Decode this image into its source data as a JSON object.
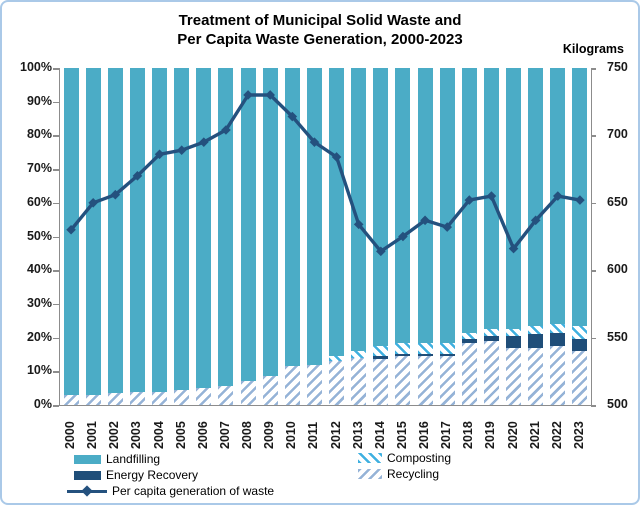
{
  "title_line1": "Treatment of Municipal Solid Waste and",
  "title_line2": "Per Capita Waste Generation, 2000-2023",
  "right_axis_title": "Kilograms",
  "legend": {
    "landfilling": "Landfilling",
    "composting": "Composting",
    "energy_recovery": "Energy Recovery",
    "recycling": "Recycling",
    "per_capita_line": "Per capita generation of waste"
  },
  "colors": {
    "landfilling": "#4BACC6",
    "energy_recovery": "#1F4E79",
    "composting_stripe": "#3FB0E0",
    "recycling_stripe": "#95B3D7",
    "line": "#24517E",
    "axis": "#8c8c8c",
    "frame_border": "#AAC9E8",
    "background": "#FFFFFF"
  },
  "chart_data": {
    "type": [
      "stacked-bar",
      "line"
    ],
    "title": "Treatment of Municipal Solid Waste and Per Capita Waste Generation, 2000-2023",
    "categories": [
      "2000",
      "2001",
      "2002",
      "2003",
      "2004",
      "2005",
      "2006",
      "2007",
      "2008",
      "2009",
      "2010",
      "2011",
      "2012",
      "2013",
      "2014",
      "2015",
      "2016",
      "2017",
      "2018",
      "2019",
      "2020",
      "2021",
      "2022",
      "2023"
    ],
    "left_axis": {
      "ticks": [
        "0%",
        "10%",
        "20%",
        "30%",
        "40%",
        "50%",
        "60%",
        "70%",
        "80%",
        "90%",
        "100%"
      ],
      "range": [
        0,
        100
      ],
      "unit": "%"
    },
    "right_axis": {
      "ticks": [
        "500",
        "550",
        "600",
        "650",
        "700",
        "750"
      ],
      "range": [
        500,
        750
      ],
      "label": "Kilograms",
      "unit": "kg"
    },
    "grid": false,
    "legend_position": "bottom",
    "series": [
      {
        "name": "Landfilling",
        "type": "bar",
        "unit": "%",
        "style": "solid-teal",
        "values": [
          97,
          97,
          96.5,
          96,
          96,
          95.5,
          95,
          94.5,
          93,
          91.5,
          88.5,
          88,
          85.5,
          84,
          82.5,
          81.5,
          81.5,
          81.5,
          78.5,
          77.5,
          77.5,
          76.5,
          76,
          76.5
        ]
      },
      {
        "name": "Composting",
        "type": "bar",
        "unit": "%",
        "style": "hatch-backslash-cyan",
        "values": [
          0,
          0,
          0,
          0,
          0,
          0,
          0,
          0,
          0,
          0,
          0,
          0,
          1.5,
          2,
          3,
          3.5,
          3.5,
          3.5,
          2,
          2,
          2,
          2.5,
          2.5,
          4
        ]
      },
      {
        "name": "Energy Recovery",
        "type": "bar",
        "unit": "%",
        "style": "solid-navy",
        "values": [
          0,
          0,
          0,
          0,
          0,
          0,
          0,
          0,
          0,
          0,
          0,
          0,
          0,
          0,
          1,
          0.5,
          0.5,
          0.5,
          1,
          1.5,
          3.5,
          4,
          4,
          3.5
        ]
      },
      {
        "name": "Recycling",
        "type": "bar",
        "unit": "%",
        "style": "hatch-slash-lightblue",
        "values": [
          3,
          3,
          3.5,
          4,
          4,
          4.5,
          5,
          5.5,
          7,
          8.5,
          11.5,
          12,
          13,
          14,
          13.5,
          14.5,
          14.5,
          14.5,
          18.5,
          19,
          17,
          17,
          17.5,
          16
        ]
      },
      {
        "name": "Per capita generation of waste",
        "type": "line",
        "unit": "kg",
        "axis": "right",
        "marker": "diamond",
        "values": [
          630,
          650,
          656,
          670,
          686,
          689,
          695,
          704,
          730,
          730,
          714,
          695,
          684,
          634,
          614,
          625,
          637,
          632,
          652,
          655,
          616,
          637,
          655,
          652
        ]
      }
    ],
    "bar_stack_order_bottom_to_top": [
      "Recycling",
      "Energy Recovery",
      "Composting",
      "Landfilling"
    ]
  }
}
